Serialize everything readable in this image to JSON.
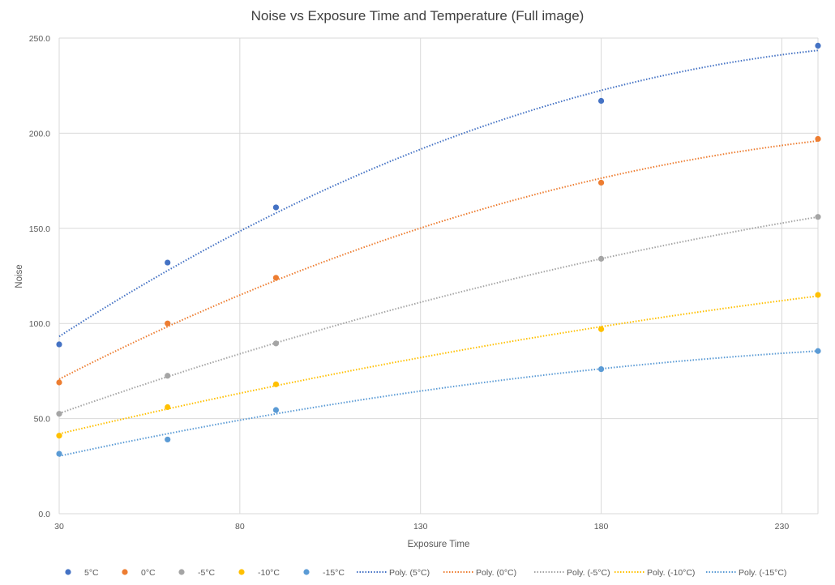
{
  "chart_data": {
    "type": "scatter",
    "title": "Noise vs Exposure Time and Temperature (Full image)",
    "xlabel": "Exposure Time",
    "ylabel": "Noise",
    "xlim": [
      30,
      240
    ],
    "ylim": [
      0,
      250
    ],
    "x_ticks": [
      "30",
      "80",
      "130",
      "180",
      "230"
    ],
    "y_ticks": [
      "0.0",
      "50.0",
      "100.0",
      "150.0",
      "200.0",
      "250.0"
    ],
    "grid": true,
    "legend_position": "bottom",
    "series": [
      {
        "name": "5°C",
        "color": "#4472C4",
        "x": [
          30,
          60,
          90,
          180,
          240
        ],
        "y": [
          89,
          132,
          161,
          217,
          246
        ]
      },
      {
        "name": "0°C",
        "color": "#ED7D31",
        "x": [
          30,
          60,
          90,
          180,
          240
        ],
        "y": [
          69,
          100,
          124,
          174,
          197
        ]
      },
      {
        "name": "-5°C",
        "color": "#A5A5A5",
        "x": [
          30,
          60,
          90,
          180,
          240
        ],
        "y": [
          52.5,
          72.5,
          89.5,
          134,
          156
        ]
      },
      {
        "name": "-10°C",
        "color": "#FFC000",
        "x": [
          30,
          60,
          90,
          180,
          240
        ],
        "y": [
          41,
          56,
          68,
          97,
          115
        ]
      },
      {
        "name": "-15°C",
        "color": "#5B9BD5",
        "x": [
          30,
          60,
          90,
          180,
          240
        ],
        "y": [
          31.5,
          39,
          54.5,
          76,
          85.5
        ]
      }
    ],
    "trendlines": [
      {
        "name": "Poly. (5°C)",
        "color": "#4472C4"
      },
      {
        "name": "Poly. (0°C)",
        "color": "#ED7D31"
      },
      {
        "name": "Poly. (-5°C)",
        "color": "#A5A5A5"
      },
      {
        "name": "Poly. (-10°C)",
        "color": "#FFC000"
      },
      {
        "name": "Poly. (-15°C)",
        "color": "#5B9BD5"
      }
    ]
  }
}
